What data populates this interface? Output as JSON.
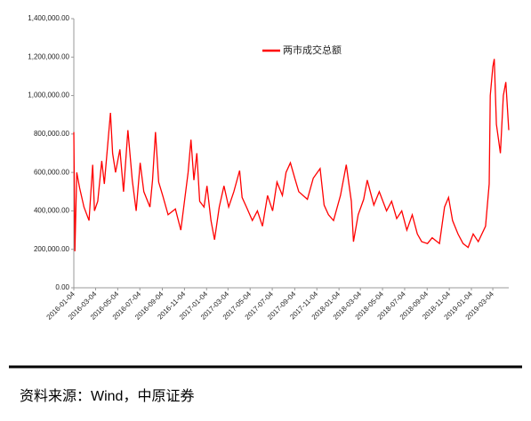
{
  "chart_data": {
    "type": "line",
    "legend": "top-center",
    "series": [
      {
        "name": "两市成交总额",
        "color": "#ff0000",
        "values": [
          810000,
          190000,
          600000,
          520000,
          420000,
          350000,
          640000,
          400000,
          450000,
          660000,
          540000,
          910000,
          700000,
          600000,
          720000,
          500000,
          820000,
          560000,
          400000,
          650000,
          500000,
          420000,
          560000,
          810000,
          550000,
          480000,
          380000,
          410000,
          300000,
          450000,
          600000,
          770000,
          560000,
          700000,
          450000,
          420000,
          530000,
          350000,
          250000,
          420000,
          530000,
          420000,
          500000,
          610000,
          470000,
          420000,
          350000,
          400000,
          320000,
          480000,
          400000,
          550000,
          480000,
          600000,
          650000,
          570000,
          500000,
          460000,
          570000,
          620000,
          430000,
          380000,
          350000,
          480000,
          640000,
          450000,
          240000,
          380000,
          460000,
          560000,
          430000,
          500000,
          400000,
          450000,
          360000,
          400000,
          300000,
          380000,
          280000,
          240000,
          230000,
          260000,
          230000,
          420000,
          470000,
          350000,
          280000,
          230000,
          210000,
          280000,
          240000,
          320000,
          540000,
          1000000,
          1150000,
          1190000,
          850000,
          700000,
          1000000,
          1070000,
          820000
        ]
      }
    ],
    "x": [
      "2016-01-04",
      "2016-01-07",
      "2016-01-12",
      "2016-01-20",
      "2016-02-01",
      "2016-02-15",
      "2016-02-25",
      "2016-03-01",
      "2016-03-10",
      "2016-03-21",
      "2016-03-28",
      "2016-04-14",
      "2016-04-20",
      "2016-04-28",
      "2016-05-10",
      "2016-05-20",
      "2016-06-01",
      "2016-06-13",
      "2016-06-24",
      "2016-07-05",
      "2016-07-15",
      "2016-08-01",
      "2016-08-08",
      "2016-08-16",
      "2016-08-25",
      "2016-09-05",
      "2016-09-20",
      "2016-10-10",
      "2016-10-25",
      "2016-11-04",
      "2016-11-14",
      "2016-11-22",
      "2016-11-30",
      "2016-12-08",
      "2016-12-16",
      "2016-12-28",
      "2017-01-05",
      "2017-01-16",
      "2017-01-26",
      "2017-02-08",
      "2017-02-21",
      "2017-03-06",
      "2017-03-20",
      "2017-04-05",
      "2017-04-12",
      "2017-04-24",
      "2017-05-10",
      "2017-05-24",
      "2017-06-07",
      "2017-06-21",
      "2017-07-05",
      "2017-07-17",
      "2017-08-01",
      "2017-08-11",
      "2017-08-23",
      "2017-09-04",
      "2017-09-15",
      "2017-10-09",
      "2017-10-25",
      "2017-11-13",
      "2017-11-24",
      "2017-12-06",
      "2017-12-20",
      "2018-01-08",
      "2018-01-24",
      "2018-02-07",
      "2018-02-13",
      "2018-02-26",
      "2018-03-13",
      "2018-03-23",
      "2018-04-10",
      "2018-04-25",
      "2018-05-15",
      "2018-05-29",
      "2018-06-12",
      "2018-06-26",
      "2018-07-10",
      "2018-07-25",
      "2018-08-08",
      "2018-08-20",
      "2018-09-05",
      "2018-09-18",
      "2018-10-08",
      "2018-10-22",
      "2018-11-02",
      "2018-11-13",
      "2018-11-28",
      "2018-12-12",
      "2018-12-26",
      "2019-01-09",
      "2019-01-23",
      "2019-02-12",
      "2019-02-22",
      "2019-02-25",
      "2019-03-04",
      "2019-03-08",
      "2019-03-14",
      "2019-03-25",
      "2019-04-02",
      "2019-04-09",
      "2019-04-17"
    ],
    "xlim": [
      "2016-01-04",
      "2019-04-17"
    ],
    "xticks": [
      "2016-01-04",
      "2016-03-04",
      "2016-05-04",
      "2016-07-04",
      "2016-09-04",
      "2016-11-04",
      "2017-01-04",
      "2017-03-04",
      "2017-05-04",
      "2017-07-04",
      "2017-09-04",
      "2017-11-04",
      "2018-01-04",
      "2018-03-04",
      "2018-05-04",
      "2018-07-04",
      "2018-09-04",
      "2018-11-04",
      "2019-01-04",
      "2019-03-04"
    ],
    "ylim": [
      0,
      1400000
    ],
    "yticks": [
      {
        "value": 0,
        "label": "0.00"
      },
      {
        "value": 200000,
        "label": "200,000.00"
      },
      {
        "value": 400000,
        "label": "400,000.00"
      },
      {
        "value": 600000,
        "label": "600,000.00"
      },
      {
        "value": 800000,
        "label": "800,000.00"
      },
      {
        "value": 1000000,
        "label": "1,000,000.00"
      },
      {
        "value": 1200000,
        "label": "1,200,000.00"
      },
      {
        "value": 1400000,
        "label": "1,400,000.00"
      }
    ],
    "source": "资料来源：Wind，中原证券"
  }
}
